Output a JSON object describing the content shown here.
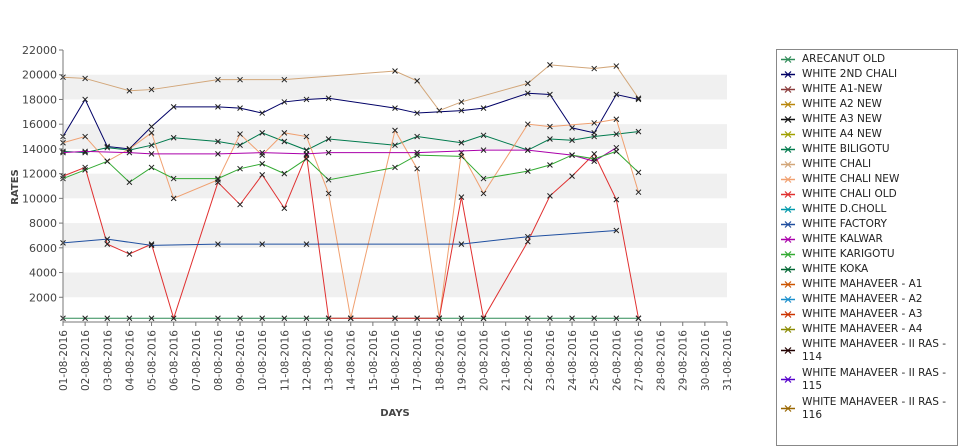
{
  "chart_data": {
    "type": "line",
    "title": "",
    "xlabel": "DAYS",
    "ylabel": "RATES",
    "ylim": [
      0,
      22000
    ],
    "yticks": [
      2000,
      4000,
      6000,
      8000,
      10000,
      12000,
      14000,
      16000,
      18000,
      20000,
      22000
    ],
    "grid": "alternating horizontal bands",
    "legend_position": "right",
    "categories": [
      "01-08-2016",
      "02-08-2016",
      "03-08-2016",
      "04-08-2016",
      "05-08-2016",
      "06-08-2016",
      "07-08-2016",
      "08-08-2016",
      "09-08-2016",
      "10-08-2016",
      "11-08-2016",
      "12-08-2016",
      "13-08-2016",
      "14-08-2016",
      "15-08-2016",
      "16-08-2016",
      "17-08-2016",
      "18-08-2016",
      "19-08-2016",
      "20-08-2016",
      "21-08-2016",
      "22-08-2016",
      "23-08-2016",
      "24-08-2016",
      "25-08-2016",
      "26-08-2016",
      "27-08-2016",
      "28-08-2016",
      "29-08-2016",
      "30-08-2016",
      "31-08-2016"
    ],
    "series": [
      {
        "name": "ARECANUT OLD",
        "color": "#2e8b57",
        "values": [
          300,
          300,
          300,
          300,
          300,
          null,
          null,
          300,
          300,
          300,
          300,
          300,
          300,
          300,
          null,
          300,
          300,
          300,
          300,
          300,
          null,
          300,
          300,
          300,
          300,
          300,
          300,
          null,
          null,
          null,
          null
        ]
      },
      {
        "name": "WHITE 2ND CHALI",
        "color": "#000066",
        "values": [
          15000,
          18000,
          14200,
          14000,
          15800,
          17400,
          null,
          17400,
          17300,
          16900,
          17800,
          18000,
          18100,
          null,
          null,
          17300,
          16900,
          null,
          17100,
          17300,
          null,
          18500,
          18400,
          15700,
          15300,
          18400,
          18000,
          null,
          null,
          null,
          null
        ]
      },
      {
        "name": "WHITE A1-NEW",
        "color": "#8b3a3a",
        "values": [
          null,
          null,
          null,
          null,
          null,
          null,
          null,
          null,
          null,
          null,
          null,
          null,
          null,
          null,
          null,
          null,
          null,
          null,
          null,
          null,
          null,
          null,
          null,
          null,
          null,
          null,
          null,
          null,
          null,
          null,
          null
        ]
      },
      {
        "name": "WHITE A2 NEW",
        "color": "#b8860b",
        "values": [
          null,
          null,
          null,
          null,
          null,
          null,
          null,
          null,
          null,
          null,
          null,
          null,
          null,
          null,
          null,
          null,
          null,
          null,
          null,
          null,
          null,
          null,
          null,
          null,
          null,
          null,
          null,
          null,
          null,
          null,
          null
        ]
      },
      {
        "name": "WHITE A3 NEW",
        "color": "#111111",
        "values": [
          null,
          null,
          null,
          null,
          null,
          null,
          null,
          null,
          null,
          null,
          null,
          null,
          null,
          null,
          null,
          null,
          null,
          null,
          null,
          null,
          null,
          null,
          null,
          null,
          null,
          null,
          null,
          null,
          null,
          null,
          null
        ]
      },
      {
        "name": "WHITE A4 NEW",
        "color": "#a0a000",
        "values": [
          null,
          null,
          null,
          null,
          null,
          null,
          null,
          null,
          null,
          null,
          null,
          null,
          null,
          null,
          null,
          null,
          null,
          null,
          null,
          null,
          null,
          null,
          null,
          null,
          null,
          null,
          null,
          null,
          null,
          null,
          null
        ]
      },
      {
        "name": "WHITE BILIGOTU",
        "color": "#007a4d",
        "values": [
          13800,
          13700,
          14100,
          13900,
          14300,
          14900,
          null,
          14600,
          14300,
          15300,
          14600,
          13900,
          14800,
          null,
          null,
          14300,
          15000,
          null,
          14500,
          15100,
          null,
          13900,
          14800,
          14700,
          15000,
          15200,
          15400,
          null,
          null,
          null,
          null
        ]
      },
      {
        "name": "WHITE CHALI",
        "color": "#d2a679",
        "values": [
          19800,
          19700,
          null,
          18700,
          18800,
          null,
          null,
          19600,
          19600,
          null,
          19600,
          null,
          null,
          null,
          null,
          20300,
          19500,
          17100,
          17800,
          null,
          null,
          19300,
          20800,
          null,
          20500,
          20700,
          18100,
          null,
          null,
          null,
          null
        ]
      },
      {
        "name": "WHITE CHALI NEW",
        "color": "#f0a070",
        "values": [
          14500,
          15000,
          13000,
          14000,
          15300,
          10000,
          null,
          11500,
          15200,
          13500,
          15300,
          15000,
          10400,
          300,
          null,
          15500,
          12400,
          300,
          13700,
          10400,
          null,
          16000,
          15800,
          null,
          16100,
          16400,
          10500,
          null,
          null,
          null,
          null
        ]
      },
      {
        "name": "WHITE CHALI OLD",
        "color": "#e03030",
        "values": [
          11800,
          12500,
          6300,
          5500,
          6300,
          300,
          null,
          11300,
          9500,
          11900,
          9200,
          13500,
          300,
          300,
          null,
          300,
          300,
          300,
          10100,
          300,
          null,
          6500,
          10200,
          11800,
          13600,
          9900,
          300,
          null,
          null,
          null,
          null
        ]
      },
      {
        "name": "WHITE D.CHOLL",
        "color": "#0099aa",
        "values": [
          null,
          null,
          null,
          null,
          null,
          null,
          null,
          null,
          null,
          null,
          null,
          null,
          null,
          null,
          null,
          null,
          null,
          null,
          null,
          null,
          null,
          null,
          null,
          null,
          null,
          null,
          null,
          null,
          null,
          null,
          null
        ]
      },
      {
        "name": "WHITE FACTORY",
        "color": "#1f4fa0",
        "values": [
          6400,
          null,
          6700,
          null,
          6200,
          null,
          null,
          6300,
          null,
          6300,
          null,
          6300,
          null,
          null,
          null,
          null,
          null,
          null,
          6300,
          null,
          null,
          6900,
          null,
          null,
          null,
          7400,
          null,
          null,
          null,
          null,
          null
        ]
      },
      {
        "name": "WHITE KALWAR",
        "color": "#aa00aa",
        "values": [
          13700,
          13800,
          null,
          13700,
          13600,
          null,
          null,
          13600,
          null,
          13700,
          null,
          13600,
          13700,
          null,
          null,
          null,
          13700,
          null,
          null,
          13900,
          null,
          13900,
          null,
          13500,
          13000,
          14100,
          null,
          null,
          null,
          null,
          null
        ]
      },
      {
        "name": "WHITE KARIGOTU",
        "color": "#33aa33",
        "values": [
          11600,
          12300,
          13000,
          11300,
          12500,
          11600,
          null,
          11600,
          12400,
          12800,
          12000,
          13200,
          11500,
          null,
          null,
          12500,
          13500,
          null,
          13400,
          11600,
          null,
          12200,
          12700,
          13500,
          13200,
          13800,
          12100,
          null,
          null,
          null,
          null
        ]
      },
      {
        "name": "WHITE KOKA",
        "color": "#006633",
        "values": [
          null,
          null,
          null,
          null,
          null,
          null,
          null,
          null,
          null,
          null,
          null,
          null,
          null,
          null,
          null,
          null,
          null,
          null,
          null,
          null,
          null,
          null,
          null,
          null,
          null,
          null,
          null,
          null,
          null,
          null,
          null
        ]
      },
      {
        "name": "WHITE MAHAVEER - A1",
        "color": "#cc5500",
        "values": [
          null,
          null,
          null,
          null,
          null,
          null,
          null,
          null,
          null,
          null,
          null,
          null,
          null,
          null,
          null,
          null,
          null,
          null,
          null,
          null,
          null,
          null,
          null,
          null,
          null,
          null,
          null,
          null,
          null,
          null,
          null
        ]
      },
      {
        "name": "WHITE MAHAVEER - A2",
        "color": "#1a8fcc",
        "values": [
          null,
          null,
          null,
          null,
          null,
          null,
          null,
          null,
          null,
          null,
          null,
          null,
          null,
          null,
          null,
          null,
          null,
          null,
          null,
          null,
          null,
          null,
          null,
          null,
          null,
          null,
          null,
          null,
          null,
          null,
          null
        ]
      },
      {
        "name": "WHITE MAHAVEER - A3",
        "color": "#cc3300",
        "values": [
          null,
          null,
          null,
          null,
          null,
          null,
          null,
          null,
          null,
          null,
          null,
          null,
          null,
          null,
          null,
          null,
          null,
          null,
          null,
          null,
          null,
          null,
          null,
          null,
          null,
          null,
          null,
          null,
          null,
          null,
          null
        ]
      },
      {
        "name": "WHITE MAHAVEER - A4",
        "color": "#8a8a00",
        "values": [
          null,
          null,
          null,
          null,
          null,
          null,
          null,
          null,
          null,
          null,
          null,
          null,
          null,
          null,
          null,
          null,
          null,
          null,
          null,
          null,
          null,
          null,
          null,
          null,
          null,
          null,
          null,
          null,
          null,
          null,
          null
        ]
      },
      {
        "name": "WHITE MAHAVEER - II RAS - 114",
        "color": "#220000",
        "values": [
          null,
          null,
          null,
          null,
          null,
          null,
          null,
          null,
          null,
          null,
          null,
          null,
          null,
          null,
          null,
          null,
          null,
          null,
          null,
          null,
          null,
          null,
          null,
          null,
          null,
          null,
          null,
          null,
          null,
          null,
          null
        ]
      },
      {
        "name": "WHITE MAHAVEER - II RAS - 115",
        "color": "#5500cc",
        "values": [
          null,
          null,
          null,
          null,
          null,
          null,
          null,
          null,
          null,
          null,
          null,
          null,
          null,
          null,
          null,
          null,
          null,
          null,
          null,
          null,
          null,
          null,
          null,
          null,
          null,
          null,
          null,
          null,
          null,
          null,
          null
        ]
      },
      {
        "name": "WHITE MAHAVEER - II RAS - 116",
        "color": "#996600",
        "values": [
          null,
          null,
          null,
          null,
          null,
          null,
          null,
          null,
          null,
          null,
          null,
          null,
          null,
          null,
          null,
          null,
          null,
          null,
          null,
          null,
          null,
          null,
          null,
          null,
          null,
          null,
          null,
          null,
          null,
          null,
          null
        ]
      }
    ]
  }
}
